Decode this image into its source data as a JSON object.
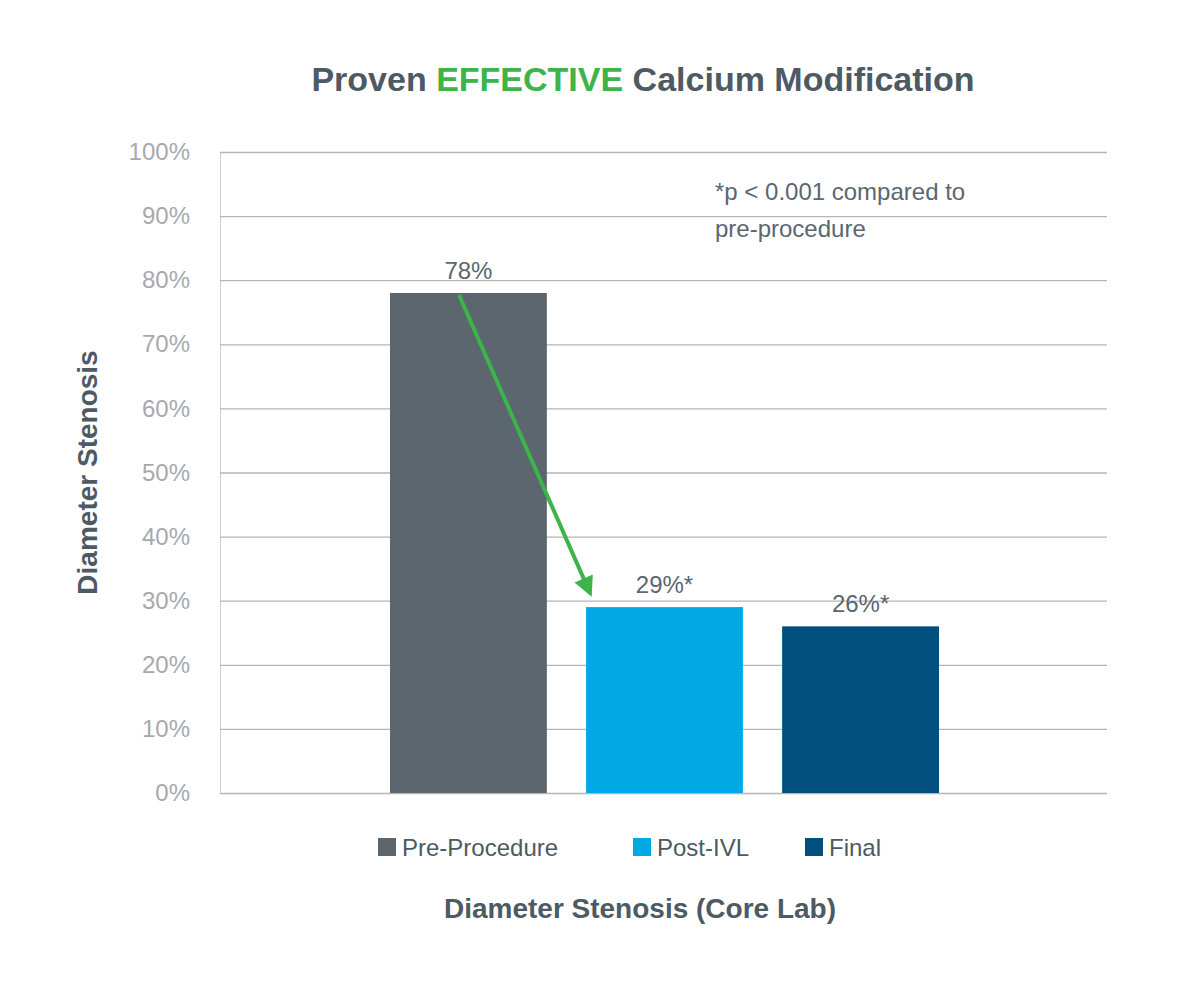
{
  "chart_data": {
    "type": "bar",
    "title": "Proven EFFECTIVE Calcium Modification",
    "categories": [
      "Pre-Procedure",
      "Post-IVL",
      "Final"
    ],
    "values": [
      78,
      29,
      26
    ],
    "value_labels": [
      "78%",
      "29%*",
      "26%*"
    ],
    "colors": [
      "#5b666e",
      "#00a9e6",
      "#004f7c"
    ],
    "ylabel": "Diameter Stenosis",
    "xlabel": "Diameter Stenosis (Core Lab)",
    "annotations": [
      "*p < 0.001 compared to",
      "pre-procedure"
    ],
    "ylim": [
      0,
      100
    ],
    "yticks": [
      {
        "value": 0,
        "label": "0%"
      },
      {
        "value": 10,
        "label": "10%"
      },
      {
        "value": 20,
        "label": "20%"
      },
      {
        "value": 30,
        "label": "30%"
      },
      {
        "value": 40,
        "label": "40%"
      },
      {
        "value": 50,
        "label": "50%"
      },
      {
        "value": 60,
        "label": "60%"
      },
      {
        "value": 70,
        "label": "70%"
      },
      {
        "value": 80,
        "label": "80%"
      },
      {
        "value": 90,
        "label": "90%"
      },
      {
        "value": 100,
        "label": "100%"
      }
    ],
    "grid": true,
    "data_labels": true,
    "legend": "bottom",
    "tick_labels": "y"
  }
}
